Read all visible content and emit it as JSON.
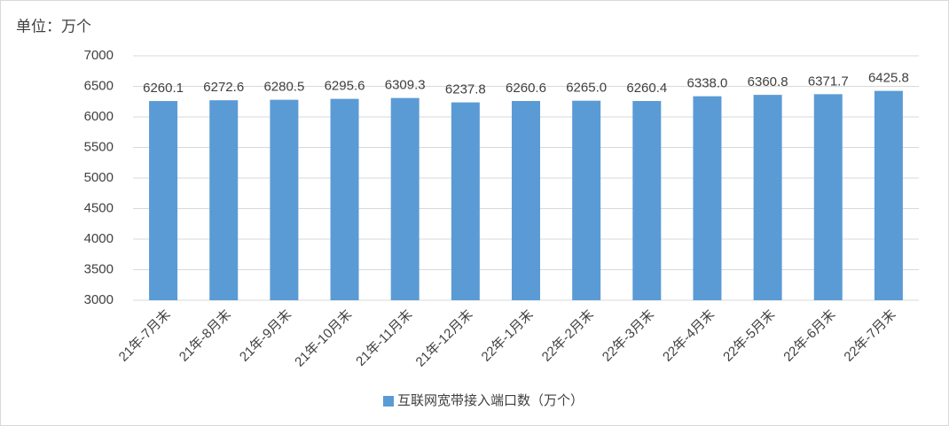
{
  "chart_data": {
    "type": "bar",
    "annotation": "单位：万个",
    "categories": [
      "21年-7月末",
      "21年-8月末",
      "21年-9月末",
      "21年-10月末",
      "21年-11月末",
      "21年-12月末",
      "22年-1月末",
      "22年-2月末",
      "22年-3月末",
      "22年-4月末",
      "22年-5月末",
      "22年-6月末",
      "22年-7月末"
    ],
    "series": [
      {
        "name": "互联网宽带接入端口数（万个）",
        "color": "#5b9bd5",
        "values": [
          6260.1,
          6272.6,
          6280.5,
          6295.6,
          6309.3,
          6237.8,
          6260.6,
          6265.0,
          6260.4,
          6338.0,
          6360.8,
          6371.7,
          6425.8
        ],
        "value_labels": [
          "6260.1",
          "6272.6",
          "6280.5",
          "6295.6",
          "6309.3",
          "6237.8",
          "6260.6",
          "6265.0",
          "6260.4",
          "6338.0",
          "6360.8",
          "6371.7",
          "6425.8"
        ]
      }
    ],
    "ylim": [
      3000,
      7000
    ],
    "yticks": [
      3000,
      3500,
      4000,
      4500,
      5000,
      5500,
      6000,
      6500,
      7000
    ],
    "grid": true,
    "legend": "bottom"
  }
}
